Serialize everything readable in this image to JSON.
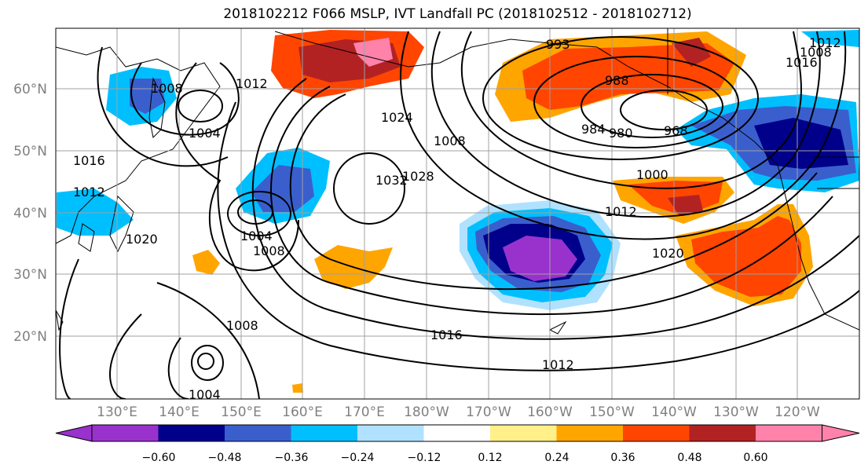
{
  "title": "2018102212 F066 MSLP, IVT Landfall PC (2018102512 - 2018102712)",
  "map": {
    "lat_labels": [
      "60°N",
      "50°N",
      "40°N",
      "30°N",
      "20°N"
    ],
    "lon_labels": [
      "130°E",
      "140°E",
      "150°E",
      "160°E",
      "170°E",
      "180°W",
      "170°W",
      "160°W",
      "150°W",
      "140°W",
      "130°W",
      "120°W"
    ],
    "contour_labels": [
      "993",
      "988",
      "984",
      "980",
      "968",
      "1000",
      "1012",
      "1020",
      "1032",
      "1028",
      "1024",
      "1008",
      "1004",
      "1008",
      "1016",
      "1012",
      "1020",
      "1016",
      "1012",
      "1008",
      "1004",
      "1008",
      "1004",
      "1012",
      "1016",
      "1008",
      "1012"
    ]
  },
  "colorbar": {
    "ticks": [
      "−0.60",
      "−0.48",
      "−0.36",
      "−0.24",
      "−0.12",
      "0.12",
      "0.24",
      "0.36",
      "0.48",
      "0.60"
    ],
    "colors": [
      "#9932cc",
      "#00008b",
      "#3a5fcd",
      "#00bfff",
      "#b0e2ff",
      "#ffffff",
      "#fff08a",
      "#ffa500",
      "#ff4500",
      "#b22222",
      "#ff82ab"
    ]
  }
}
